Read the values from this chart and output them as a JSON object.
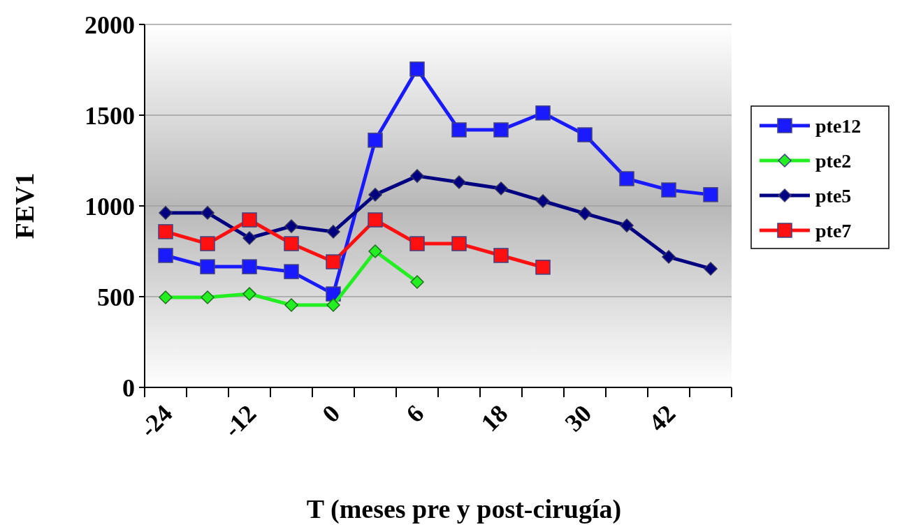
{
  "chart_data": {
    "type": "line",
    "xlabel": "T (meses pre y post-cirugía)",
    "ylabel": "FEV1",
    "categories": [
      "-24",
      null,
      "-12",
      null,
      "0",
      null,
      "6",
      null,
      "18",
      null,
      "30",
      null,
      "42",
      null
    ],
    "ylim": [
      0,
      2000
    ],
    "yticks": [
      0,
      500,
      1000,
      1500,
      2000
    ],
    "grid": "y",
    "legend": "right",
    "series": [
      {
        "name": "pte12",
        "color": "#1a1aff",
        "marker": "square",
        "values": [
          727,
          665,
          665,
          638,
          515,
          1362,
          1754,
          1419,
          1419,
          1512,
          1392,
          1150,
          1088,
          1062
        ]
      },
      {
        "name": "pte2",
        "color": "#22ee22",
        "marker": "diamond",
        "values": [
          496,
          496,
          515,
          454,
          454,
          750,
          581,
          null,
          null,
          null,
          null,
          null,
          null,
          null
        ]
      },
      {
        "name": "pte5",
        "color": "#000080",
        "marker": "diamond",
        "values": [
          962,
          962,
          823,
          888,
          858,
          1062,
          1165,
          1131,
          1096,
          1027,
          958,
          892,
          719,
          654
        ]
      },
      {
        "name": "pte7",
        "color": "#ff1010",
        "marker": "square",
        "values": [
          858,
          792,
          923,
          792,
          692,
          923,
          792,
          792,
          727,
          662,
          null,
          null,
          null,
          null
        ]
      }
    ]
  }
}
